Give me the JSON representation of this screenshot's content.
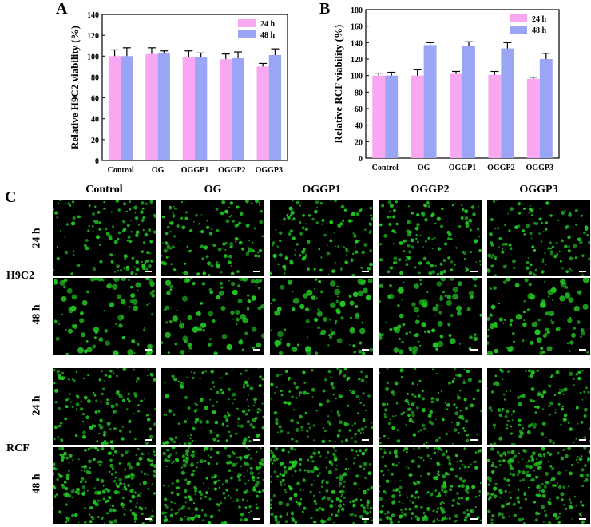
{
  "panels": {
    "a": {
      "letter": "A"
    },
    "b": {
      "letter": "B"
    },
    "c": {
      "letter": "C"
    }
  },
  "chart_data": [
    {
      "type": "bar",
      "panel": "A",
      "categories": [
        "Control",
        "OG",
        "OGGP1",
        "OGGP2",
        "OGGP3"
      ],
      "series": [
        {
          "name": "24 h",
          "values": [
            100,
            102,
            99,
            97,
            90
          ],
          "errors": [
            6,
            6,
            6,
            5,
            3
          ],
          "color": "#f7a8f0"
        },
        {
          "name": "48 h",
          "values": [
            100,
            103,
            99,
            98,
            101
          ],
          "errors": [
            8,
            2,
            4,
            6,
            6
          ],
          "color": "#9aa6f5"
        }
      ],
      "ylabel": "Relative H9C2 viability (%)",
      "ylim": [
        0,
        140
      ],
      "yticks": [
        0,
        20,
        40,
        60,
        80,
        100,
        120,
        140
      ],
      "legend": "top-right"
    },
    {
      "type": "bar",
      "panel": "B",
      "categories": [
        "Control",
        "OG",
        "OGGP1",
        "OGGP2",
        "OGGP3"
      ],
      "series": [
        {
          "name": "24 h",
          "values": [
            100,
            100,
            102,
            101,
            96
          ],
          "errors": [
            3,
            7,
            3,
            4,
            2
          ],
          "color": "#f7a8f0"
        },
        {
          "name": "48 h",
          "values": [
            100,
            137,
            136,
            133,
            120
          ],
          "errors": [
            4,
            3,
            5,
            7,
            7
          ],
          "color": "#9aa6f5"
        }
      ],
      "ylabel": "Relative RCF viability (%)",
      "ylim": [
        0,
        180
      ],
      "yticks": [
        0,
        20,
        40,
        60,
        80,
        100,
        120,
        140,
        160,
        180
      ],
      "legend": "top-right"
    }
  ],
  "micrographs": {
    "columns": [
      "Control",
      "OG",
      "OGGP1",
      "OGGP2",
      "OGGP3"
    ],
    "groups": [
      {
        "name": "H9C2",
        "rows": [
          "24 h",
          "48 h"
        ]
      },
      {
        "name": "RCF",
        "rows": [
          "24 h",
          "48 h"
        ]
      }
    ],
    "cell_color": "#22c522",
    "background": "#000000"
  }
}
